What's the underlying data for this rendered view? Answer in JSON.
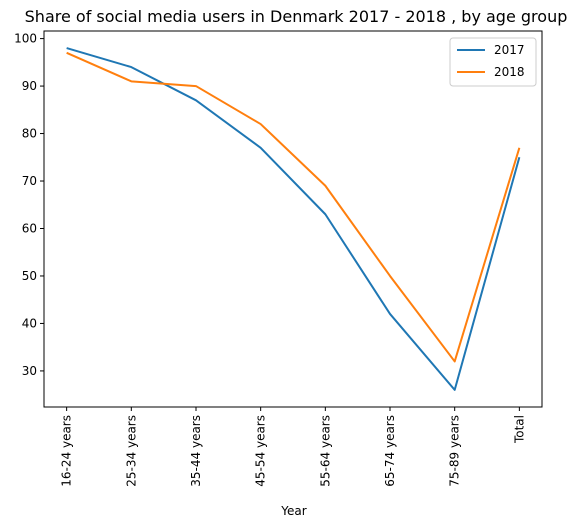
{
  "chart_data": {
    "type": "line",
    "title": "Share of social media users in Denmark 2017 - 2018 , by age group",
    "xlabel": "Year",
    "ylabel": "",
    "categories": [
      "16-24 years",
      "25-34 years",
      "35-44 years",
      "45-54 years",
      "55-64 years",
      "65-74 years",
      "75-89 years",
      "Total"
    ],
    "series": [
      {
        "name": "2017",
        "color": "#1f77b4",
        "values": [
          98,
          94,
          87,
          77,
          63,
          42,
          26,
          75
        ]
      },
      {
        "name": "2018",
        "color": "#ff7f0e",
        "values": [
          97,
          91,
          90,
          82,
          69,
          50,
          32,
          77
        ]
      }
    ],
    "yticks": [
      "30",
      "40",
      "50",
      "60",
      "70",
      "80",
      "90",
      "100"
    ],
    "ylim": [
      22.4,
      101.6
    ],
    "grid": false,
    "legend_position": "top-right"
  }
}
